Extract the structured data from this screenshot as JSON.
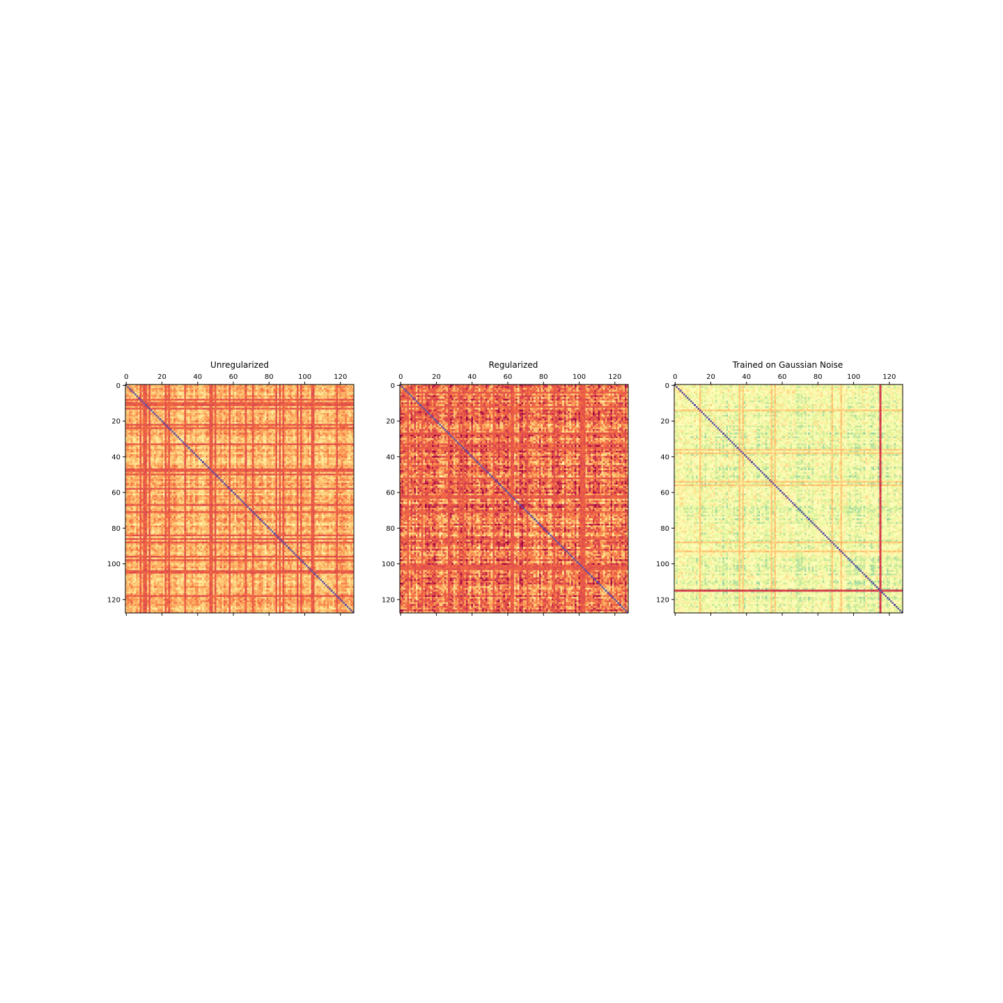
{
  "chart_data": [
    {
      "type": "heatmap",
      "title": "Unregularized",
      "size": 128,
      "colormap": "Spectral",
      "xlim": [
        -0.5,
        127.5
      ],
      "ylim": [
        127.5,
        -0.5
      ],
      "x_ticks": [
        0,
        20,
        40,
        60,
        80,
        100,
        120
      ],
      "y_ticks": [
        0,
        20,
        40,
        60,
        80,
        100,
        120
      ],
      "x_tick_labels": [
        "0",
        "20",
        "40",
        "60",
        "80",
        "100",
        "120"
      ],
      "y_tick_labels": [
        "0",
        "20",
        "40",
        "60",
        "80",
        "100",
        "120"
      ],
      "x_axis_position": "top",
      "diagonal_value": 0.0,
      "off_diagonal_base": 0.33,
      "off_diagonal_spread": 0.1,
      "strong_rows": [
        8,
        10,
        11,
        13,
        22,
        24,
        33,
        47,
        48,
        50,
        58,
        67,
        71,
        84,
        86,
        88,
        96,
        98,
        104,
        105,
        118
      ],
      "strong_row_value": 0.16,
      "seed": 11
    },
    {
      "type": "heatmap",
      "title": "Regularized",
      "size": 128,
      "colormap": "Spectral",
      "xlim": [
        -0.5,
        127.5
      ],
      "ylim": [
        127.5,
        -0.5
      ],
      "x_ticks": [
        0,
        20,
        40,
        60,
        80,
        100,
        120
      ],
      "y_ticks": [
        0,
        20,
        40,
        60,
        80,
        100,
        120
      ],
      "x_tick_labels": [
        "0",
        "20",
        "40",
        "60",
        "80",
        "100",
        "120"
      ],
      "y_tick_labels": [
        "0",
        "20",
        "40",
        "60",
        "80",
        "100",
        "120"
      ],
      "x_axis_position": "top",
      "diagonal_value": 0.0,
      "off_diagonal_base": 0.22,
      "off_diagonal_spread": 0.16,
      "strong_rows": [
        4,
        12,
        27,
        33,
        35,
        52,
        62,
        63,
        71,
        86,
        101,
        102,
        103
      ],
      "strong_row_value": 0.16,
      "seed": 23
    },
    {
      "type": "heatmap",
      "title": "Trained on Gaussian Noise",
      "size": 128,
      "colormap": "Spectral",
      "xlim": [
        -0.5,
        127.5
      ],
      "ylim": [
        127.5,
        -0.5
      ],
      "x_ticks": [
        0,
        20,
        40,
        60,
        80,
        100,
        120
      ],
      "y_ticks": [
        0,
        20,
        40,
        60,
        80,
        100,
        120
      ],
      "x_tick_labels": [
        "0",
        "20",
        "40",
        "60",
        "80",
        "100",
        "120"
      ],
      "y_tick_labels": [
        "0",
        "20",
        "40",
        "60",
        "80",
        "100",
        "120"
      ],
      "x_axis_position": "top",
      "diagonal_value": 0.0,
      "off_diagonal_base": 0.55,
      "off_diagonal_spread": 0.12,
      "strong_rows": [
        14,
        36,
        38,
        54,
        56,
        88,
        93
      ],
      "strong_row_value": 0.36,
      "highlight_index": 115,
      "highlight_value": 0.1,
      "seed": 37
    }
  ]
}
